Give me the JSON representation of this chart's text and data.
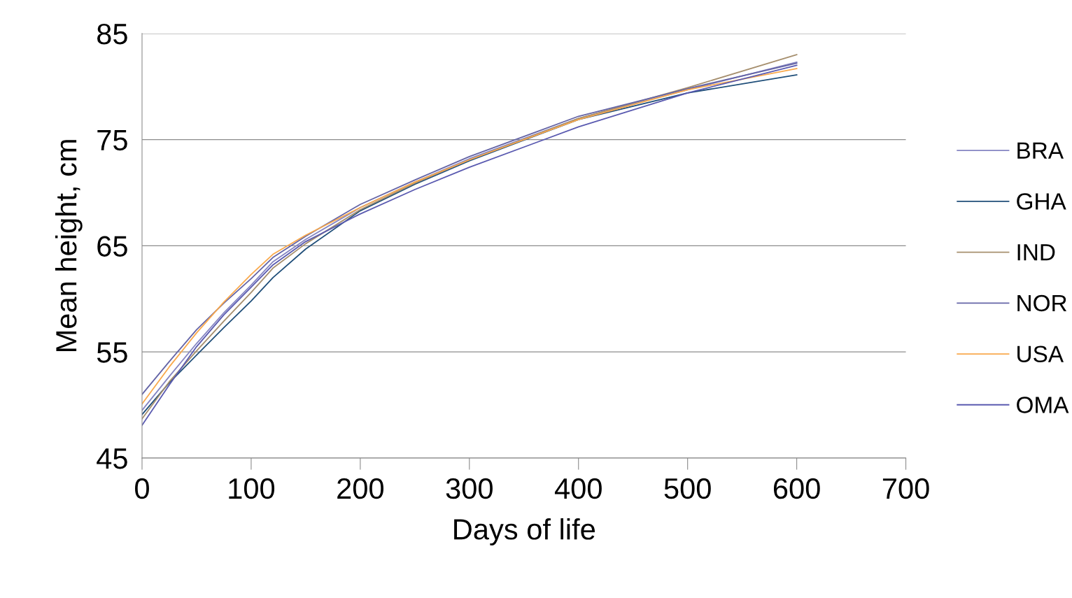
{
  "chart_data": {
    "type": "line",
    "xlabel": "Days of life",
    "ylabel": "Mean height, cm",
    "xlim": [
      0,
      700
    ],
    "xticks": [
      0,
      100,
      200,
      300,
      400,
      500,
      600,
      700
    ],
    "ylim": [
      45,
      85
    ],
    "yticks": [
      45,
      55,
      65,
      75,
      85
    ],
    "grid": "y",
    "legend": "right",
    "marker": "none",
    "line_style": "solid",
    "x": [
      0,
      25,
      50,
      75,
      100,
      120,
      150,
      200,
      250,
      300,
      400,
      500,
      600
    ],
    "series": [
      {
        "name": "BRA",
        "color": "#8585c2",
        "values": [
          49.5,
          52.7,
          55.8,
          58.7,
          61.3,
          63.5,
          65.6,
          68.6,
          71.0,
          73.2,
          77.0,
          79.7,
          82.3
        ]
      },
      {
        "name": "GHA",
        "color": "#1f4e79",
        "values": [
          49.1,
          52.1,
          54.7,
          57.3,
          59.8,
          62.0,
          64.7,
          68.3,
          70.8,
          73.0,
          76.9,
          79.4,
          81.1
        ]
      },
      {
        "name": "IND",
        "color": "#a68f6e",
        "values": [
          48.7,
          52.2,
          55.1,
          57.9,
          60.6,
          62.9,
          65.2,
          68.4,
          70.9,
          73.1,
          77.0,
          79.9,
          83.0
        ]
      },
      {
        "name": "NOR",
        "color": "#6464a6",
        "values": [
          51.0,
          54.1,
          57.1,
          59.6,
          61.9,
          63.9,
          65.9,
          68.9,
          71.2,
          73.4,
          77.2,
          79.8,
          82.2
        ]
      },
      {
        "name": "USA",
        "color": "#f9a94c",
        "values": [
          50.1,
          53.6,
          56.8,
          59.7,
          62.3,
          64.2,
          66.0,
          68.6,
          71.0,
          73.1,
          76.9,
          79.7,
          81.7
        ]
      },
      {
        "name": "OMA",
        "color": "#5a5ab0",
        "values": [
          48.1,
          51.9,
          55.5,
          58.5,
          61.1,
          63.2,
          65.4,
          68.0,
          70.3,
          72.4,
          76.2,
          79.4,
          82.0
        ]
      }
    ]
  }
}
